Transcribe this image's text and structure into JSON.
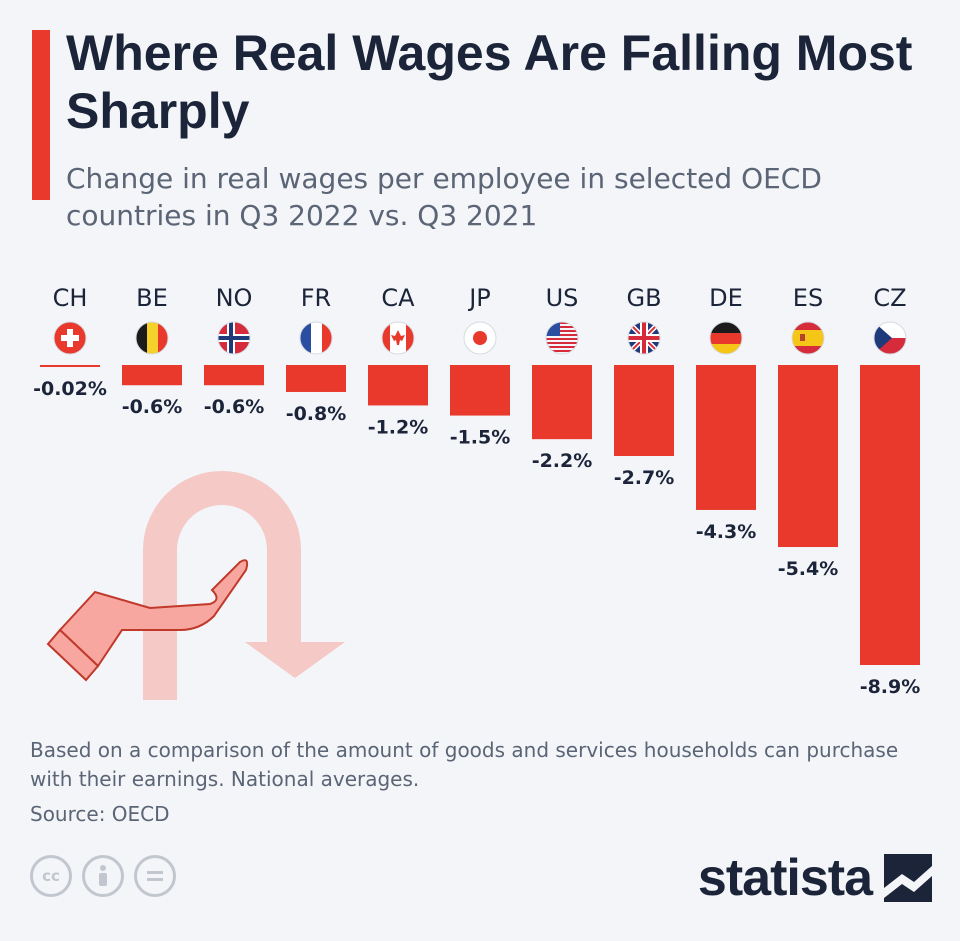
{
  "header": {
    "title": "Where Real Wages Are Falling Most Sharply",
    "subtitle": "Change in real wages per employee in selected OECD countries in Q3 2022 vs. Q3 2021"
  },
  "colors": {
    "accent": "#e8392c",
    "text": "#1b2438",
    "muted": "#5b6575",
    "bar": "#e8392c"
  },
  "chart_data": {
    "type": "bar",
    "categories": [
      "CH",
      "BE",
      "NO",
      "FR",
      "CA",
      "JP",
      "US",
      "GB",
      "DE",
      "ES",
      "CZ"
    ],
    "values": [
      -0.02,
      -0.6,
      -0.6,
      -0.8,
      -1.2,
      -1.5,
      -2.2,
      -2.7,
      -4.3,
      -5.4,
      -8.9
    ],
    "value_labels": [
      "-0.02%",
      "-0.6%",
      "-0.6%",
      "-0.8%",
      "-1.2%",
      "-1.5%",
      "-2.2%",
      "-2.7%",
      "-4.3%",
      "-5.4%",
      "-8.9%"
    ],
    "flag_icons": [
      "flag-switzerland-icon",
      "flag-belgium-icon",
      "flag-norway-icon",
      "flag-france-icon",
      "flag-canada-icon",
      "flag-japan-icon",
      "flag-usa-icon",
      "flag-uk-icon",
      "flag-germany-icon",
      "flag-spain-icon",
      "flag-czechia-icon"
    ],
    "ylim": [
      -8.9,
      0
    ],
    "grid": false,
    "legend": "none"
  },
  "footer": {
    "note": "Based on a comparison of the amount of goods and services households can purchase with their earnings. National averages.",
    "source": "Source: OECD",
    "brand": "statista",
    "license_icons": [
      "cc-icon",
      "attribution-icon",
      "no-derivatives-icon"
    ]
  }
}
